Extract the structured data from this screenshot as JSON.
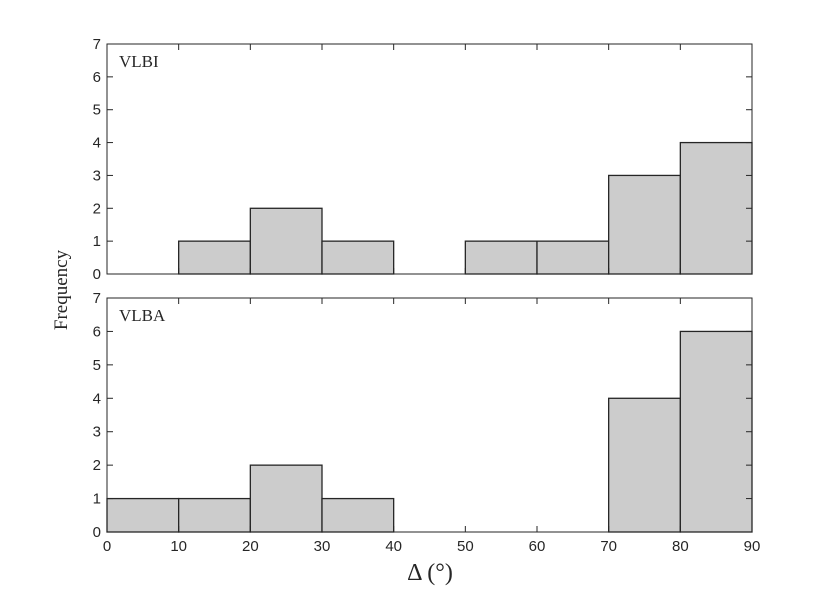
{
  "chart_data": [
    {
      "type": "bar",
      "panel_label": "VLBI",
      "bin_edges": [
        0,
        10,
        20,
        30,
        40,
        50,
        60,
        70,
        80,
        90
      ],
      "values": [
        0,
        1,
        2,
        1,
        0,
        1,
        1,
        3,
        4
      ],
      "ylim": [
        0,
        7
      ],
      "yticks": [
        0,
        1,
        2,
        3,
        4,
        5,
        6,
        7
      ],
      "xlim": [
        0,
        90
      ],
      "show_xtick_labels": false
    },
    {
      "type": "bar",
      "panel_label": "VLBA",
      "bin_edges": [
        0,
        10,
        20,
        30,
        40,
        50,
        60,
        70,
        80,
        90
      ],
      "values": [
        1,
        1,
        2,
        1,
        0,
        0,
        0,
        4,
        6
      ],
      "ylim": [
        0,
        7
      ],
      "yticks": [
        0,
        1,
        2,
        3,
        4,
        5,
        6,
        7
      ],
      "xlim": [
        0,
        90
      ],
      "xticks": [
        0,
        10,
        20,
        30,
        40,
        50,
        60,
        70,
        80,
        90
      ],
      "show_xtick_labels": true
    }
  ],
  "shared": {
    "ylabel": "Frequency",
    "xlabel": "Δ (°)",
    "bar_fill": "#cccccc",
    "bar_edge": "#262626",
    "axis_color": "#262626",
    "grid": false
  }
}
